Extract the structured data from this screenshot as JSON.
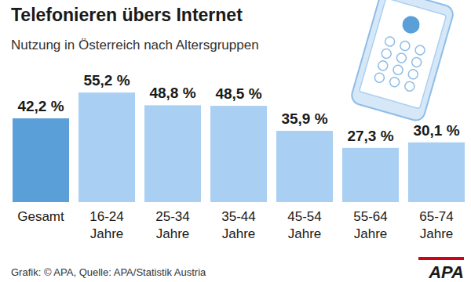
{
  "chart_data": {
    "type": "bar",
    "title": "Telefonieren übers Internet",
    "subtitle": "Nutzung in Österreich nach Altersgruppen",
    "categories": [
      "Gesamt",
      "16-24 Jahre",
      "25-34 Jahre",
      "35-44 Jahre",
      "45-54 Jahre",
      "55-64 Jahre",
      "65-74 Jahre"
    ],
    "values": [
      42.2,
      55.2,
      48.8,
      48.5,
      35.9,
      27.3,
      30.1
    ],
    "value_labels": [
      "42,2 %",
      "55,2 %",
      "48,8 %",
      "48,5 %",
      "35,9 %",
      "27,3 %",
      "30,1 %"
    ],
    "colors": [
      "#5b9fd8",
      "#a9cff2",
      "#a9cff2",
      "#a9cff2",
      "#a9cff2",
      "#a9cff2",
      "#a9cff2"
    ],
    "ylim": [
      0,
      60
    ],
    "data_labels": true,
    "tick_labels": "x",
    "source": "Grafik: © APA, Quelle: APA/Statistik Austria",
    "logo": "APA"
  }
}
